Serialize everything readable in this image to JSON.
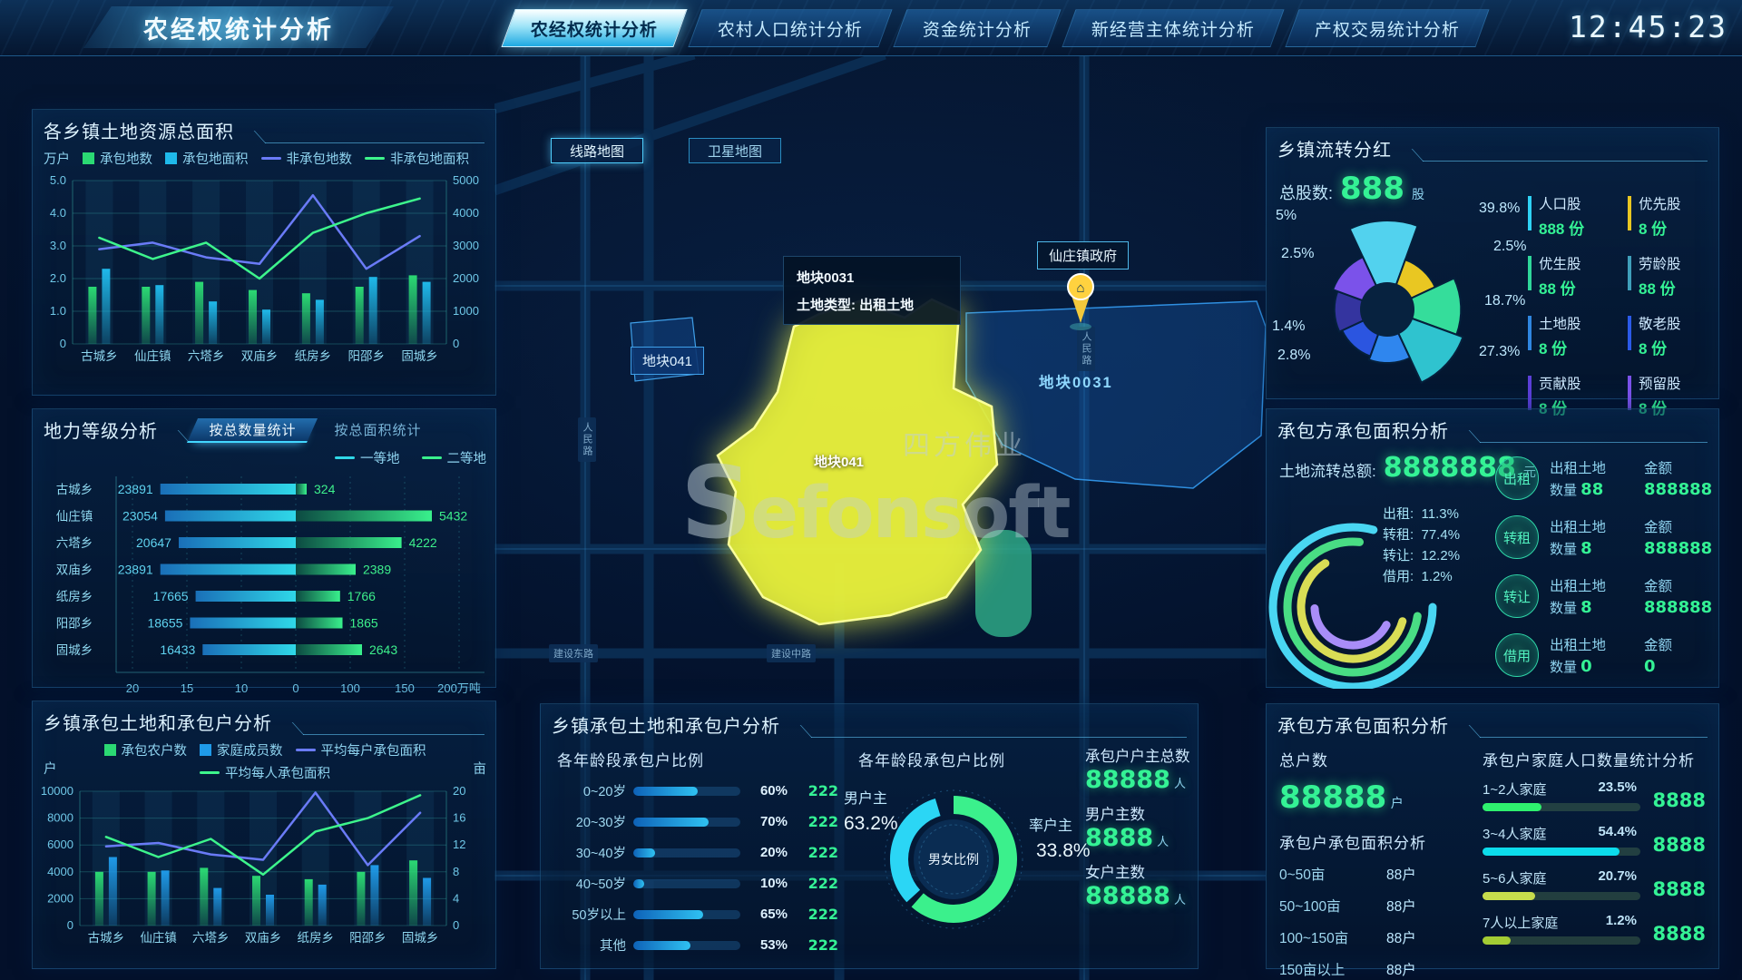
{
  "header": {
    "title": "农经权统计分析",
    "tabs": [
      {
        "label": "农经权统计分析",
        "active": true
      },
      {
        "label": "农村人口统计分析",
        "active": false
      },
      {
        "label": "资金统计分析",
        "active": false
      },
      {
        "label": "新经营主体统计分析",
        "active": false
      },
      {
        "label": "产权交易统计分析",
        "active": false
      }
    ],
    "clock": "12:45:23"
  },
  "map": {
    "buttons": [
      {
        "label": "线路地图",
        "active": true
      },
      {
        "label": "卫星地图",
        "active": false
      }
    ],
    "tooltip": {
      "title": "地块0031",
      "line": "土地类型: 出租土地"
    },
    "parcel_badge": "地块041",
    "parcel_yellow_label": "地块041",
    "parcel_blue_label": "地块0031",
    "gov_label": "仙庄镇政府",
    "roads": [
      "人民路",
      "人民路",
      "建设中路",
      "建设东路"
    ],
    "watermark": {
      "logo": "efonsoft",
      "logo_initial": "S",
      "text": "四方伟业"
    }
  },
  "panels": {
    "land_resources": {
      "title": "各乡镇土地资源总面积",
      "unit_left": "万户"
    },
    "land_grade": {
      "title": "地力等级分析",
      "tabs": [
        {
          "label": "按总数量统计",
          "active": true
        },
        {
          "label": "按总面积统计",
          "active": false
        }
      ]
    },
    "contract_households": {
      "title": "乡镇承包土地和承包户分析",
      "unit_left": "户",
      "unit_right": "亩"
    },
    "dividend": {
      "title": "乡镇流转分红",
      "total_label": "总股数:",
      "total_value": "888",
      "total_unit": "股",
      "labels_left": [
        "5%",
        "2.5%",
        "1.4%",
        "2.8%"
      ],
      "labels_right": [
        "39.8%",
        "2.5%",
        "18.7%",
        "27.3%"
      ],
      "legend": [
        {
          "name": "人口股",
          "value": "888",
          "unit": "份",
          "color": "#2fd2f5"
        },
        {
          "name": "优先股",
          "value": "8",
          "unit": "份",
          "color": "#e8c622"
        },
        {
          "name": "优生股",
          "value": "88",
          "unit": "份",
          "color": "#2fd79a"
        },
        {
          "name": "劳龄股",
          "value": "88",
          "unit": "份",
          "color": "#3f9fba"
        },
        {
          "name": "土地股",
          "value": "8",
          "unit": "份",
          "color": "#2f86e0"
        },
        {
          "name": "敬老股",
          "value": "8",
          "unit": "份",
          "color": "#2b5ae8"
        },
        {
          "name": "贡献股",
          "value": "8",
          "unit": "份",
          "color": "#5b3fd8"
        },
        {
          "name": "预留股",
          "value": "8",
          "unit": "份",
          "color": "#7a52ea"
        }
      ]
    },
    "transfer": {
      "title": "承包方承包面积分析",
      "total_label": "土地流转总额:",
      "total_value": "8888888",
      "total_unit": "元",
      "col_land": "出租土地",
      "col_amount": "金额",
      "qty_label": "数量",
      "items": [
        {
          "badge": "出租",
          "qty": "88",
          "amount": "888888"
        },
        {
          "badge": "转租",
          "qty": "8",
          "amount": "888888"
        },
        {
          "badge": "转让",
          "qty": "8",
          "amount": "888888"
        },
        {
          "badge": "借用",
          "qty": "0",
          "amount": "0"
        }
      ]
    },
    "contractor": {
      "title": "承包方承包面积分析",
      "total_label": "总户数",
      "total_value": "88888",
      "total_unit": "户",
      "sub_area": "承包户承包面积分析",
      "sub_family": "承包户家庭人口数量统计分析"
    },
    "bottom_center": {
      "title": "乡镇承包土地和承包户分析",
      "sub_left": "各年龄段承包户比例",
      "sub_right": "各年龄段承包户比例",
      "stats": [
        {
          "label": "承包户户主总数",
          "value": "88888",
          "unit": "人"
        },
        {
          "label": "男户主数",
          "value": "8888",
          "unit": "人"
        },
        {
          "label": "女户主数",
          "value": "88888",
          "unit": "人"
        }
      ]
    }
  },
  "chart_data": [
    {
      "id": "land_resources",
      "type": "bar",
      "title": "各乡镇土地资源总面积",
      "categories": [
        "古城乡",
        "仙庄镇",
        "六塔乡",
        "双庙乡",
        "纸房乡",
        "阳邵乡",
        "固城乡"
      ],
      "ylabel_left": "万户",
      "ylim_left": [
        0,
        5
      ],
      "yticks_left": [
        "0",
        "1.0",
        "2.0",
        "3.0",
        "4.0",
        "5.0"
      ],
      "ylim_right": [
        0,
        5000
      ],
      "yticks_right": [
        "0",
        "1000",
        "2000",
        "3000",
        "4000",
        "5000"
      ],
      "series": [
        {
          "name": "承包地数",
          "type": "bar",
          "color": "#2bd973",
          "values": [
            1.75,
            1.75,
            1.9,
            1.65,
            1.55,
            1.75,
            2.1
          ]
        },
        {
          "name": "承包地面积",
          "type": "bar",
          "color": "#1fb9ea",
          "values": [
            2.3,
            1.8,
            1.3,
            1.05,
            1.35,
            2.05,
            1.9
          ]
        },
        {
          "name": "非承包地数",
          "type": "line",
          "color": "#6a7bf7",
          "values": [
            2900,
            3100,
            2650,
            2450,
            4550,
            2300,
            3300
          ]
        },
        {
          "name": "非承包地面积",
          "type": "line",
          "color": "#3df58c",
          "values": [
            3250,
            2600,
            3100,
            2000,
            3400,
            4000,
            4450
          ]
        }
      ]
    },
    {
      "id": "land_grade",
      "type": "bar",
      "title": "地力等级分析(按总数量统计)",
      "categories": [
        "古城乡",
        "仙庄镇",
        "六塔乡",
        "双庙乡",
        "纸房乡",
        "阳邵乡",
        "固城乡"
      ],
      "axis_ticks": [
        "20",
        "15",
        "10",
        "0",
        "100",
        "150",
        "200万吨"
      ],
      "series": [
        {
          "name": "一等地",
          "color": "#2fd8e8",
          "values": [
            23891,
            23054,
            20647,
            23891,
            17665,
            18655,
            16433
          ]
        },
        {
          "name": "二等地",
          "color": "#39f08c",
          "values": [
            324,
            5432,
            4222,
            2389,
            1766,
            1865,
            2643
          ]
        }
      ]
    },
    {
      "id": "contract_households",
      "type": "bar",
      "title": "乡镇承包土地和承包户分析",
      "categories": [
        "古城乡",
        "仙庄镇",
        "六塔乡",
        "双庙乡",
        "纸房乡",
        "阳邵乡",
        "固城乡"
      ],
      "ylabel_left": "户",
      "ylabel_right": "亩",
      "ylim_left": [
        0,
        10000
      ],
      "yticks_left": [
        "0",
        "2000",
        "4000",
        "6000",
        "8000",
        "10000"
      ],
      "ylim_right": [
        0,
        20
      ],
      "yticks_right": [
        "0",
        "4",
        "8",
        "12",
        "16",
        "20"
      ],
      "series": [
        {
          "name": "承包农户数",
          "type": "bar",
          "color": "#2bd973",
          "values": [
            4000,
            4000,
            4300,
            3700,
            3450,
            4000,
            4850
          ]
        },
        {
          "name": "家庭成员数",
          "type": "bar",
          "color": "#1f9ae8",
          "values": [
            5100,
            4100,
            2800,
            2300,
            3050,
            4500,
            3550
          ]
        },
        {
          "name": "平均每户承包面积",
          "type": "line",
          "color": "#6a7bf7",
          "values": [
            11.8,
            12.3,
            10.6,
            9.8,
            19.8,
            9.0,
            16.8
          ]
        },
        {
          "name": "平均每人承包面积",
          "type": "line",
          "color": "#3df58c",
          "values": [
            13.2,
            10.2,
            12.9,
            7.6,
            14.0,
            16.0,
            19.4
          ]
        }
      ]
    },
    {
      "id": "dividend_shares",
      "type": "pie",
      "title": "乡镇流转分红",
      "slices": [
        {
          "label": "39.8%",
          "value": 39.8,
          "color": "#52d2ee"
        },
        {
          "label": "2.5%",
          "value": 2.5,
          "color": "#e9c722"
        },
        {
          "label": "18.7%",
          "value": 18.7,
          "color": "#35dd9b"
        },
        {
          "label": "27.3%",
          "value": 27.3,
          "color": "#2fc3cf"
        },
        {
          "label": "2.8%",
          "value": 2.8,
          "color": "#2f86ee"
        },
        {
          "label": "1.4%",
          "value": 1.4,
          "color": "#2b55e0"
        },
        {
          "label": "2.5%",
          "value": 2.5,
          "color": "#34349f"
        },
        {
          "label": "5%",
          "value": 5,
          "color": "#7b52ea"
        }
      ],
      "total": {
        "label": "总股数",
        "value": 888,
        "unit": "股"
      }
    },
    {
      "id": "transfer_rings",
      "type": "pie",
      "title": "承包方承包面积分析",
      "rings": [
        {
          "name": "出租",
          "pct": 11.3,
          "color": "#49d6f2"
        },
        {
          "name": "转租",
          "pct": 77.4,
          "color": "#49dd84"
        },
        {
          "name": "转让",
          "pct": 12.2,
          "color": "#d9dd55"
        },
        {
          "name": "借用",
          "pct": 1.2,
          "color": "#a98df8"
        }
      ]
    },
    {
      "id": "age_ratio",
      "type": "bar",
      "title": "各年龄段承包户比例",
      "rows": [
        {
          "label": "0~20岁",
          "pct": 60,
          "count": 222
        },
        {
          "label": "20~30岁",
          "pct": 70,
          "count": 222
        },
        {
          "label": "30~40岁",
          "pct": 20,
          "count": 222
        },
        {
          "label": "40~50岁",
          "pct": 10,
          "count": 222
        },
        {
          "label": "50岁以上",
          "pct": 65,
          "count": 222
        },
        {
          "label": "其他",
          "pct": 53,
          "count": 222
        }
      ]
    },
    {
      "id": "gender_ratio",
      "type": "pie",
      "title": "各年龄段承包户比例",
      "center_label": "男女比例",
      "slices": [
        {
          "label": "男户主",
          "pct": 63.2,
          "color": "#3bf08c"
        },
        {
          "label": "率户主",
          "pct": 33.8,
          "color": "#2bd6f5"
        }
      ]
    },
    {
      "id": "family_size",
      "type": "bar",
      "title": "承包户家庭人口数量统计分析",
      "rows": [
        {
          "label": "1~2人家庭",
          "pct": 23.5,
          "count": 8888,
          "color": "#2ef06e"
        },
        {
          "label": "3~4人家庭",
          "pct": 54.4,
          "count": 8888,
          "color": "#0cdcec"
        },
        {
          "label": "5~6人家庭",
          "pct": 20.7,
          "count": 8888,
          "color": "#c6dc4c"
        },
        {
          "label": "7人以上家庭",
          "pct": 1.2,
          "count": 8888,
          "color": "#a4cc34"
        }
      ]
    },
    {
      "id": "area_rows",
      "type": "table",
      "title": "承包户承包面积分析",
      "rows": [
        {
          "label": "0~50亩",
          "value": "88户"
        },
        {
          "label": "50~100亩",
          "value": "88户"
        },
        {
          "label": "100~150亩",
          "value": "88户"
        },
        {
          "label": "150亩以上",
          "value": "88户"
        }
      ]
    }
  ]
}
